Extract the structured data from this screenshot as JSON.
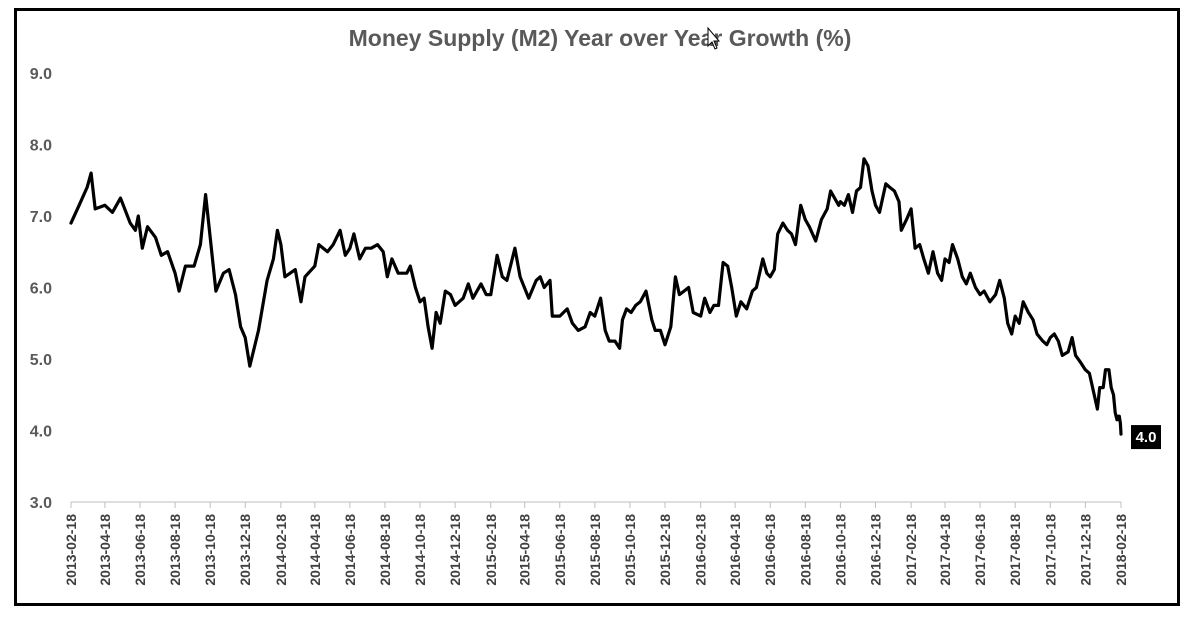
{
  "chart_data": {
    "type": "line",
    "title": "Money Supply (M2) Year over Year Growth (%)",
    "xlabel": "",
    "ylabel": "",
    "ylim": [
      3.0,
      9.0
    ],
    "yticks": [
      "3.0",
      "4.0",
      "5.0",
      "6.0",
      "7.0",
      "8.0",
      "9.0"
    ],
    "xlim": [
      "2013-02-18",
      "2018-02-18"
    ],
    "xticks": [
      "2013-02-18",
      "2013-04-18",
      "2013-06-18",
      "2013-08-18",
      "2013-10-18",
      "2013-12-18",
      "2014-02-18",
      "2014-04-18",
      "2014-06-18",
      "2014-08-18",
      "2014-10-18",
      "2014-12-18",
      "2015-02-18",
      "2015-04-18",
      "2015-06-18",
      "2015-08-18",
      "2015-10-18",
      "2015-12-18",
      "2016-02-18",
      "2016-04-18",
      "2016-06-18",
      "2016-08-18",
      "2016-10-18",
      "2016-12-18",
      "2017-02-18",
      "2017-04-18",
      "2017-06-18",
      "2017-08-18",
      "2017-10-18",
      "2017-12-18",
      "2018-02-18"
    ],
    "grid": false,
    "legend": "none",
    "line_color": "#000000",
    "end_label": "4.0",
    "series": [
      {
        "points": [
          [
            "2013-02-18",
            6.9
          ],
          [
            "2013-03-04",
            7.15
          ],
          [
            "2013-03-18",
            7.4
          ],
          [
            "2013-03-25",
            7.6
          ],
          [
            "2013-04-01",
            7.1
          ],
          [
            "2013-04-18",
            7.15
          ],
          [
            "2013-05-01",
            7.05
          ],
          [
            "2013-05-15",
            7.25
          ],
          [
            "2013-06-01",
            6.9
          ],
          [
            "2013-06-10",
            6.8
          ],
          [
            "2013-06-15",
            7.0
          ],
          [
            "2013-06-22",
            6.55
          ],
          [
            "2013-07-01",
            6.85
          ],
          [
            "2013-07-15",
            6.7
          ],
          [
            "2013-07-25",
            6.45
          ],
          [
            "2013-08-05",
            6.5
          ],
          [
            "2013-08-18",
            6.2
          ],
          [
            "2013-08-25",
            5.95
          ],
          [
            "2013-09-05",
            6.3
          ],
          [
            "2013-09-20",
            6.3
          ],
          [
            "2013-10-01",
            6.6
          ],
          [
            "2013-10-10",
            7.3
          ],
          [
            "2013-10-18",
            6.7
          ],
          [
            "2013-10-28",
            5.95
          ],
          [
            "2013-11-10",
            6.2
          ],
          [
            "2013-11-20",
            6.25
          ],
          [
            "2013-12-01",
            5.9
          ],
          [
            "2013-12-10",
            5.45
          ],
          [
            "2013-12-18",
            5.3
          ],
          [
            "2013-12-26",
            4.9
          ],
          [
            "2014-01-10",
            5.4
          ],
          [
            "2014-01-25",
            6.1
          ],
          [
            "2014-02-05",
            6.4
          ],
          [
            "2014-02-12",
            6.8
          ],
          [
            "2014-02-18",
            6.6
          ],
          [
            "2014-02-25",
            6.15
          ],
          [
            "2014-03-15",
            6.25
          ],
          [
            "2014-03-25",
            5.8
          ],
          [
            "2014-04-01",
            6.15
          ],
          [
            "2014-04-18",
            6.3
          ],
          [
            "2014-04-25",
            6.6
          ],
          [
            "2014-05-10",
            6.5
          ],
          [
            "2014-05-20",
            6.6
          ],
          [
            "2014-06-01",
            6.8
          ],
          [
            "2014-06-10",
            6.45
          ],
          [
            "2014-06-18",
            6.55
          ],
          [
            "2014-06-25",
            6.75
          ],
          [
            "2014-07-05",
            6.4
          ],
          [
            "2014-07-15",
            6.55
          ],
          [
            "2014-07-25",
            6.55
          ],
          [
            "2014-08-05",
            6.6
          ],
          [
            "2014-08-15",
            6.5
          ],
          [
            "2014-08-22",
            6.15
          ],
          [
            "2014-08-30",
            6.4
          ],
          [
            "2014-09-10",
            6.2
          ],
          [
            "2014-09-25",
            6.2
          ],
          [
            "2014-10-01",
            6.3
          ],
          [
            "2014-10-10",
            6.0
          ],
          [
            "2014-10-18",
            5.8
          ],
          [
            "2014-10-25",
            5.85
          ],
          [
            "2014-11-01",
            5.45
          ],
          [
            "2014-11-08",
            5.15
          ],
          [
            "2014-11-15",
            5.65
          ],
          [
            "2014-11-22",
            5.5
          ],
          [
            "2014-12-01",
            5.95
          ],
          [
            "2014-12-10",
            5.9
          ],
          [
            "2014-12-18",
            5.75
          ],
          [
            "2015-01-01",
            5.85
          ],
          [
            "2015-01-10",
            6.05
          ],
          [
            "2015-01-18",
            5.85
          ],
          [
            "2015-02-01",
            6.05
          ],
          [
            "2015-02-10",
            5.9
          ],
          [
            "2015-02-18",
            5.9
          ],
          [
            "2015-03-01",
            6.45
          ],
          [
            "2015-03-10",
            6.15
          ],
          [
            "2015-03-18",
            6.1
          ],
          [
            "2015-04-01",
            6.55
          ],
          [
            "2015-04-10",
            6.15
          ],
          [
            "2015-04-25",
            5.85
          ],
          [
            "2015-05-08",
            6.1
          ],
          [
            "2015-05-15",
            6.15
          ],
          [
            "2015-05-22",
            6.0
          ],
          [
            "2015-06-01",
            6.1
          ],
          [
            "2015-06-05",
            5.6
          ],
          [
            "2015-06-18",
            5.6
          ],
          [
            "2015-07-01",
            5.7
          ],
          [
            "2015-07-10",
            5.5
          ],
          [
            "2015-07-20",
            5.4
          ],
          [
            "2015-08-01",
            5.45
          ],
          [
            "2015-08-10",
            5.65
          ],
          [
            "2015-08-18",
            5.6
          ],
          [
            "2015-08-28",
            5.85
          ],
          [
            "2015-09-05",
            5.4
          ],
          [
            "2015-09-12",
            5.25
          ],
          [
            "2015-09-22",
            5.25
          ],
          [
            "2015-09-30",
            5.15
          ],
          [
            "2015-10-05",
            5.55
          ],
          [
            "2015-10-12",
            5.7
          ],
          [
            "2015-10-20",
            5.65
          ],
          [
            "2015-10-28",
            5.75
          ],
          [
            "2015-11-05",
            5.8
          ],
          [
            "2015-11-15",
            5.95
          ],
          [
            "2015-11-25",
            5.55
          ],
          [
            "2015-12-01",
            5.4
          ],
          [
            "2015-12-10",
            5.4
          ],
          [
            "2015-12-18",
            5.2
          ],
          [
            "2015-12-28",
            5.45
          ],
          [
            "2016-01-05",
            6.15
          ],
          [
            "2016-01-12",
            5.9
          ],
          [
            "2016-01-20",
            5.95
          ],
          [
            "2016-01-28",
            6.0
          ],
          [
            "2016-02-05",
            5.65
          ],
          [
            "2016-02-18",
            5.6
          ],
          [
            "2016-02-25",
            5.85
          ],
          [
            "2016-03-05",
            5.65
          ],
          [
            "2016-03-12",
            5.75
          ],
          [
            "2016-03-20",
            5.75
          ],
          [
            "2016-03-28",
            6.35
          ],
          [
            "2016-04-05",
            6.3
          ],
          [
            "2016-04-12",
            6.0
          ],
          [
            "2016-04-20",
            5.6
          ],
          [
            "2016-04-28",
            5.8
          ],
          [
            "2016-05-08",
            5.7
          ],
          [
            "2016-05-18",
            5.95
          ],
          [
            "2016-05-25",
            6.0
          ],
          [
            "2016-06-05",
            6.4
          ],
          [
            "2016-06-12",
            6.2
          ],
          [
            "2016-06-18",
            6.15
          ],
          [
            "2016-06-25",
            6.25
          ],
          [
            "2016-07-01",
            6.75
          ],
          [
            "2016-07-10",
            6.9
          ],
          [
            "2016-07-18",
            6.8
          ],
          [
            "2016-07-25",
            6.75
          ],
          [
            "2016-08-01",
            6.6
          ],
          [
            "2016-08-10",
            7.15
          ],
          [
            "2016-08-18",
            6.95
          ],
          [
            "2016-08-25",
            6.85
          ],
          [
            "2016-09-05",
            6.65
          ],
          [
            "2016-09-15",
            6.95
          ],
          [
            "2016-09-25",
            7.1
          ],
          [
            "2016-10-01",
            7.35
          ],
          [
            "2016-10-08",
            7.25
          ],
          [
            "2016-10-15",
            7.15
          ],
          [
            "2016-10-18",
            7.2
          ],
          [
            "2016-10-25",
            7.15
          ],
          [
            "2016-11-01",
            7.3
          ],
          [
            "2016-11-08",
            7.05
          ],
          [
            "2016-11-15",
            7.35
          ],
          [
            "2016-11-22",
            7.4
          ],
          [
            "2016-11-28",
            7.8
          ],
          [
            "2016-12-05",
            7.7
          ],
          [
            "2016-12-12",
            7.35
          ],
          [
            "2016-12-18",
            7.15
          ],
          [
            "2016-12-25",
            7.05
          ],
          [
            "2017-01-05",
            7.45
          ],
          [
            "2017-01-12",
            7.4
          ],
          [
            "2017-01-20",
            7.35
          ],
          [
            "2017-01-28",
            7.2
          ],
          [
            "2017-02-01",
            6.8
          ],
          [
            "2017-02-10",
            6.95
          ],
          [
            "2017-02-18",
            7.1
          ],
          [
            "2017-02-25",
            6.55
          ],
          [
            "2017-03-05",
            6.6
          ],
          [
            "2017-03-12",
            6.4
          ],
          [
            "2017-03-20",
            6.2
          ],
          [
            "2017-03-28",
            6.5
          ],
          [
            "2017-04-05",
            6.2
          ],
          [
            "2017-04-12",
            6.1
          ],
          [
            "2017-04-18",
            6.4
          ],
          [
            "2017-04-25",
            6.35
          ],
          [
            "2017-05-01",
            6.6
          ],
          [
            "2017-05-10",
            6.4
          ],
          [
            "2017-05-18",
            6.15
          ],
          [
            "2017-05-25",
            6.05
          ],
          [
            "2017-06-01",
            6.2
          ],
          [
            "2017-06-10",
            6.0
          ],
          [
            "2017-06-18",
            5.9
          ],
          [
            "2017-06-25",
            5.95
          ],
          [
            "2017-07-05",
            5.8
          ],
          [
            "2017-07-15",
            5.9
          ],
          [
            "2017-07-22",
            6.1
          ],
          [
            "2017-07-30",
            5.85
          ],
          [
            "2017-08-05",
            5.5
          ],
          [
            "2017-08-12",
            5.35
          ],
          [
            "2017-08-18",
            5.6
          ],
          [
            "2017-08-25",
            5.5
          ],
          [
            "2017-09-01",
            5.8
          ],
          [
            "2017-09-10",
            5.65
          ],
          [
            "2017-09-18",
            5.55
          ],
          [
            "2017-09-25",
            5.35
          ],
          [
            "2017-10-05",
            5.25
          ],
          [
            "2017-10-12",
            5.2
          ],
          [
            "2017-10-18",
            5.3
          ],
          [
            "2017-10-25",
            5.35
          ],
          [
            "2017-11-01",
            5.25
          ],
          [
            "2017-11-08",
            5.05
          ],
          [
            "2017-11-18",
            5.1
          ],
          [
            "2017-11-25",
            5.3
          ],
          [
            "2017-12-01",
            5.05
          ],
          [
            "2017-12-10",
            4.95
          ],
          [
            "2017-12-18",
            4.85
          ],
          [
            "2017-12-25",
            4.8
          ],
          [
            "2018-01-01",
            4.55
          ],
          [
            "2018-01-08",
            4.3
          ],
          [
            "2018-01-12",
            4.6
          ],
          [
            "2018-01-18",
            4.6
          ],
          [
            "2018-01-22",
            4.85
          ],
          [
            "2018-01-28",
            4.85
          ],
          [
            "2018-02-01",
            4.6
          ],
          [
            "2018-02-05",
            4.5
          ],
          [
            "2018-02-08",
            4.25
          ],
          [
            "2018-02-11",
            4.15
          ],
          [
            "2018-02-13",
            4.2
          ],
          [
            "2018-02-15",
            4.2
          ],
          [
            "2018-02-17",
            4.1
          ],
          [
            "2018-02-18",
            3.95
          ]
        ]
      }
    ]
  }
}
